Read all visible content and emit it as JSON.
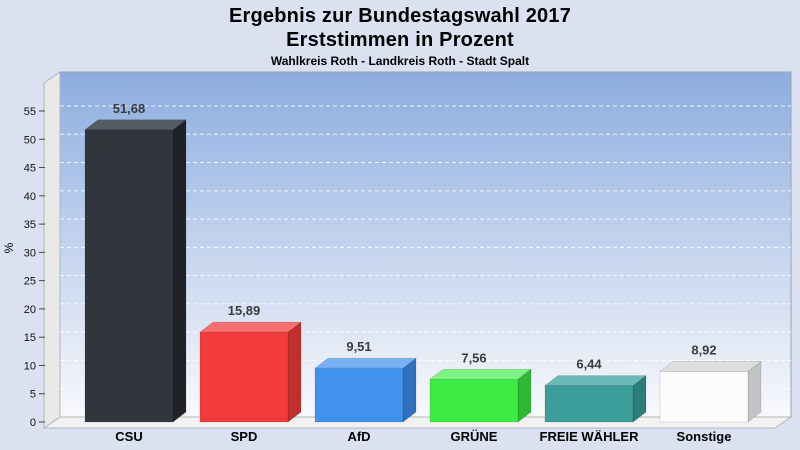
{
  "header": {
    "title": "Ergebnis zur Bundestagswahl 2017",
    "subtitle": "Erststimmen in Prozent",
    "caption": "Wahlkreis Roth - Landkreis Roth - Stadt Spalt"
  },
  "chart_data": {
    "type": "bar",
    "title": "Ergebnis zur Bundestagswahl 2017",
    "subtitle": "Erststimmen in Prozent",
    "caption": "Wahlkreis Roth - Landkreis Roth - Stadt Spalt",
    "ylabel": "%",
    "xlabel": "",
    "ylim": [
      0,
      55
    ],
    "ytick_step": 5,
    "grid": "dashed horizontal",
    "legend": "none",
    "style": "3d-bars on gradient back wall",
    "categories": [
      "CSU",
      "SPD",
      "AfD",
      "GRÜNE",
      "FREIE WÄHLER",
      "Sonstige"
    ],
    "values": [
      51.68,
      15.89,
      9.51,
      7.56,
      6.44,
      8.92
    ],
    "value_labels": [
      "51,68",
      "15,89",
      "9,51",
      "7,56",
      "6,44",
      "8,92"
    ],
    "bar_colors": [
      {
        "front": "#31363c",
        "top": "#565c64",
        "side": "#1f2327"
      },
      {
        "front": "#f23b3b",
        "top": "#f66e6e",
        "side": "#c12e2e"
      },
      {
        "front": "#4192ee",
        "top": "#79b1f4",
        "side": "#3071bd"
      },
      {
        "front": "#3ceb44",
        "top": "#7df381",
        "side": "#2eb934"
      },
      {
        "front": "#3b9e9b",
        "top": "#6cbab7",
        "side": "#2c7c7a"
      },
      {
        "front": "#fcfcfc",
        "top": "#dedede",
        "side": "#c3c3c7"
      }
    ],
    "palette": {
      "page_background": "#dbe1f1",
      "wall_gradient_top": "#8cade0",
      "wall_gradient_bottom": "#f7f9fd",
      "wall_edge": "#9aa2b0",
      "left_wall_fill": "#e9e9ea",
      "floor_fill": "#f2f2f3",
      "side_wall_edge": "#b5b5b9",
      "gridline": "#ffffff",
      "tick_color": "#444444",
      "value_label_color": "#3c3c3c",
      "category_label_color": "#000000",
      "axis_text_color": "#111111"
    }
  }
}
